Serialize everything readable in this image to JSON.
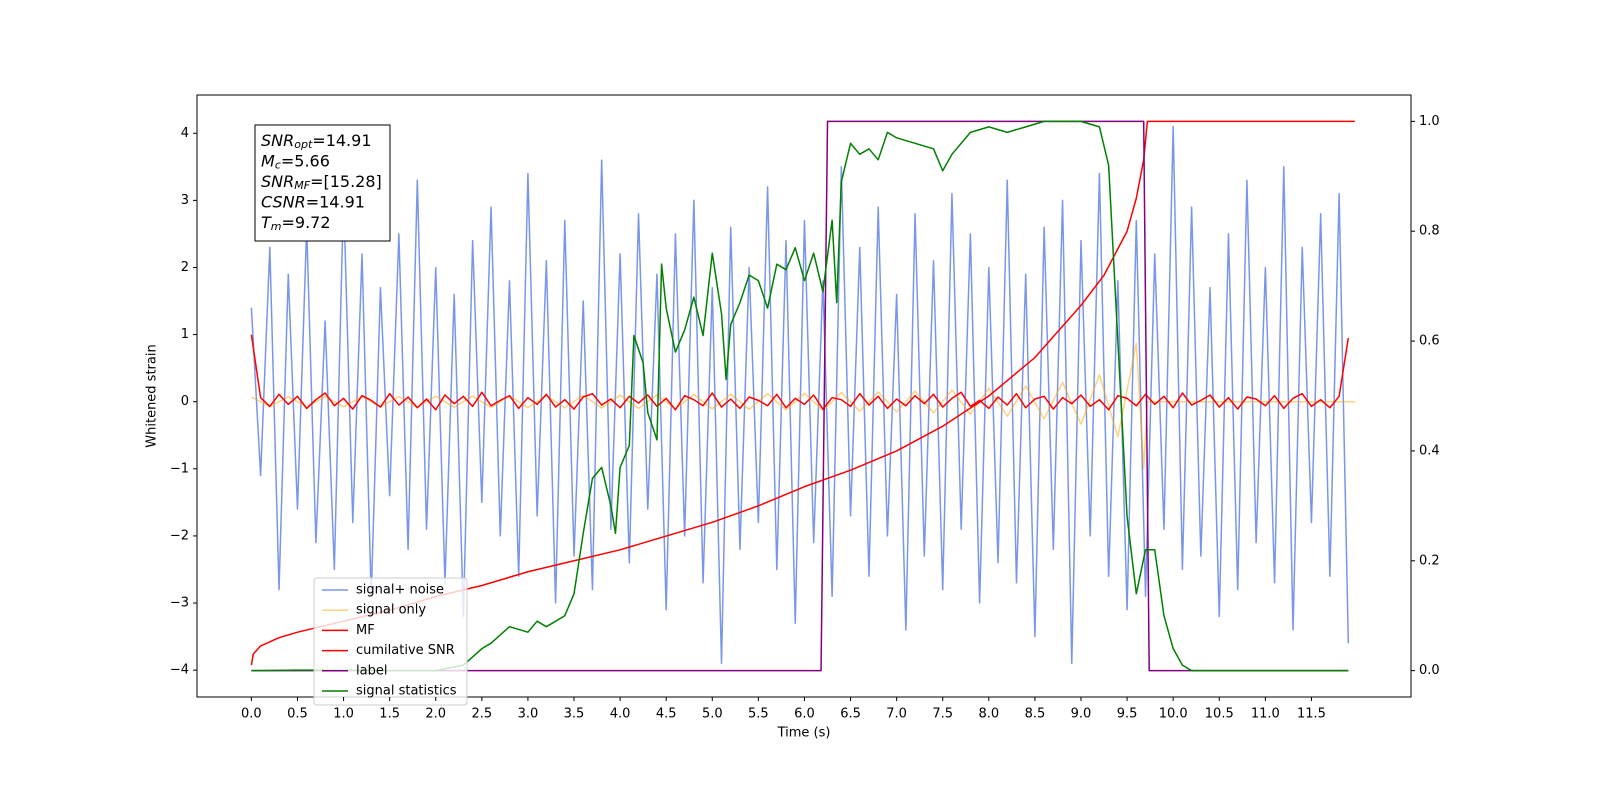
{
  "chart_data": {
    "type": "line",
    "xlabel": "Time (s)",
    "ylabel": "Whitened strain",
    "xlim": [
      -0.59,
      12.58
    ],
    "ylim": [
      -4.4,
      4.57
    ],
    "y2lim": [
      -0.048,
      1.048
    ],
    "xticks": [
      {
        "value": 0,
        "label": "0.0"
      },
      0.5,
      {
        "value": 1,
        "label": "1.0"
      },
      1.5,
      {
        "value": 2,
        "label": "2.0"
      },
      2.5,
      {
        "value": 3,
        "label": "3.0"
      },
      3.5,
      {
        "value": 4,
        "label": "4.0"
      },
      4.5,
      {
        "value": 5,
        "label": "5.0"
      },
      5.5,
      {
        "value": 6,
        "label": "6.0"
      },
      6.5,
      {
        "value": 7,
        "label": "7.0"
      },
      7.5,
      {
        "value": 8,
        "label": "8.0"
      },
      8.5,
      {
        "value": 9,
        "label": "9.0"
      },
      9.5,
      {
        "value": 10,
        "label": "10.0"
      },
      10.5,
      {
        "value": 11,
        "label": "11.0"
      },
      11.5
    ],
    "yticks": [
      {
        "value": -4,
        "label": "−4"
      },
      {
        "value": -3,
        "label": "−3"
      },
      {
        "value": -2,
        "label": "−2"
      },
      {
        "value": -1,
        "label": "−1"
      },
      0,
      1,
      2,
      3,
      4
    ],
    "y2ticks": [
      {
        "value": 0,
        "label": "0.0"
      },
      0.2,
      0.4,
      0.6,
      0.8,
      {
        "value": 1,
        "label": "1.0"
      }
    ],
    "grid": false,
    "legend": "lower left",
    "annotations": [
      {
        "symbol": "SNR",
        "sub": "opt",
        "text": "=14.91"
      },
      {
        "symbol": "M",
        "sub": "c",
        "text": "=5.66"
      },
      {
        "symbol": "SNR",
        "sub": "MF",
        "text": "=[15.28]"
      },
      {
        "symbol": "CSNR",
        "text": "=14.91"
      },
      {
        "symbol": "T",
        "sub": "m",
        "text": "=9.72"
      }
    ],
    "series": [
      {
        "name": "signal+ noise",
        "color": "#4169e1",
        "alpha": 0.7,
        "axis": "y",
        "x": [
          0,
          0.1,
          0.2,
          0.3,
          0.4,
          0.5,
          0.6,
          0.7,
          0.8,
          0.9,
          1,
          1.1,
          1.2,
          1.3,
          1.4,
          1.5,
          1.6,
          1.7,
          1.8,
          1.9,
          2,
          2.1,
          2.2,
          2.3,
          2.4,
          2.5,
          2.6,
          2.7,
          2.8,
          2.9,
          3,
          3.1,
          3.2,
          3.3,
          3.4,
          3.5,
          3.6,
          3.7,
          3.8,
          3.9,
          4,
          4.1,
          4.2,
          4.3,
          4.4,
          4.5,
          4.6,
          4.7,
          4.8,
          4.9,
          5,
          5.1,
          5.2,
          5.3,
          5.4,
          5.5,
          5.6,
          5.7,
          5.8,
          5.9,
          6,
          6.1,
          6.2,
          6.3,
          6.4,
          6.5,
          6.6,
          6.7,
          6.8,
          6.9,
          7,
          7.1,
          7.2,
          7.3,
          7.4,
          7.5,
          7.6,
          7.7,
          7.8,
          7.9,
          8,
          8.1,
          8.2,
          8.3,
          8.4,
          8.5,
          8.6,
          8.7,
          8.8,
          8.9,
          9,
          9.1,
          9.2,
          9.3,
          9.4,
          9.5,
          9.6,
          9.7,
          9.8,
          9.9,
          10,
          10.1,
          10.2,
          10.3,
          10.4,
          10.5,
          10.6,
          10.7,
          10.8,
          10.9,
          11,
          11.1,
          11.2,
          11.3,
          11.4,
          11.5,
          11.6,
          11.7,
          11.8,
          11.9
        ],
        "values": [
          1.4,
          -1.1,
          2.3,
          -2.8,
          1.9,
          -1.6,
          2.6,
          -2.1,
          1.2,
          -2.5,
          3.1,
          -1.8,
          2.2,
          -2.9,
          1.7,
          -1.4,
          2.5,
          -2.2,
          3.3,
          -1.9,
          2.0,
          -2.7,
          1.6,
          -3.2,
          2.4,
          -1.5,
          2.9,
          -2.0,
          1.8,
          -2.6,
          3.4,
          -1.7,
          2.1,
          -3.0,
          2.7,
          -2.3,
          1.5,
          -2.8,
          3.6,
          -1.9,
          2.2,
          -2.4,
          2.8,
          -1.6,
          1.9,
          -3.1,
          2.5,
          -2.0,
          3.0,
          -2.7,
          1.7,
          -3.9,
          2.6,
          -2.2,
          2.0,
          -1.8,
          3.2,
          -2.5,
          2.4,
          -3.3,
          2.7,
          -2.1,
          1.8,
          -2.9,
          3.5,
          -1.7,
          2.3,
          -2.6,
          2.9,
          -2.0,
          1.6,
          -3.4,
          2.8,
          -2.3,
          2.1,
          -2.8,
          3.1,
          -1.9,
          2.5,
          -3.0,
          2.0,
          -2.4,
          3.3,
          -2.7,
          1.9,
          -3.5,
          2.6,
          -2.2,
          3.0,
          -3.9,
          2.4,
          -2.0,
          3.4,
          -2.6,
          1.8,
          -3.1,
          2.7,
          -2.9,
          2.2,
          -1.9,
          4.1,
          -2.5,
          2.9,
          -2.3,
          1.7,
          -3.2,
          2.5,
          -2.8,
          3.3,
          -2.1,
          2.0,
          -2.7,
          3.5,
          -3.4,
          2.3,
          -1.8,
          2.8,
          -2.6,
          3.1,
          -3.6
        ]
      },
      {
        "name": "signal only",
        "color": "#ffa500",
        "alpha": 0.5,
        "axis": "y",
        "x": [
          0,
          0.2,
          0.4,
          0.6,
          0.8,
          1,
          1.2,
          1.4,
          1.6,
          1.8,
          2,
          2.2,
          2.4,
          2.6,
          2.8,
          3,
          3.2,
          3.4,
          3.6,
          3.8,
          4,
          4.2,
          4.4,
          4.6,
          4.8,
          5,
          5.2,
          5.4,
          5.6,
          5.8,
          6,
          6.2,
          6.4,
          6.6,
          6.8,
          7,
          7.2,
          7.4,
          7.6,
          7.8,
          8,
          8.2,
          8.4,
          8.6,
          8.8,
          9,
          9.2,
          9.4,
          9.6,
          9.68,
          9.72,
          11.97
        ],
        "values": [
          0.071,
          -0.072,
          0.073,
          -0.074,
          0.075,
          -0.076,
          0.077,
          -0.078,
          0.08,
          -0.081,
          0.082,
          -0.083,
          0.085,
          -0.086,
          0.088,
          -0.089,
          0.091,
          -0.092,
          0.094,
          -0.096,
          0.098,
          -0.1,
          0.102,
          -0.105,
          0.107,
          -0.11,
          0.113,
          -0.116,
          0.119,
          -0.123,
          0.127,
          -0.131,
          0.136,
          -0.141,
          0.146,
          -0.153,
          0.16,
          -0.168,
          0.177,
          -0.188,
          0.2,
          -0.215,
          0.234,
          -0.257,
          0.289,
          -0.333,
          0.401,
          -0.526,
          0.874,
          -1.0,
          0,
          0
        ]
      },
      {
        "name": "MF",
        "color": "#ff0000",
        "alpha": 1,
        "axis": "y",
        "x": [
          0,
          0.1,
          0.2,
          0.3,
          0.4,
          0.5,
          0.6,
          0.7,
          0.8,
          0.9,
          1,
          1.1,
          1.2,
          1.3,
          1.4,
          1.5,
          1.6,
          1.7,
          1.8,
          1.9,
          2,
          2.1,
          2.2,
          2.3,
          2.4,
          2.5,
          2.6,
          2.7,
          2.8,
          2.9,
          3,
          3.1,
          3.2,
          3.3,
          3.4,
          3.5,
          3.6,
          3.7,
          3.8,
          3.9,
          4,
          4.1,
          4.2,
          4.3,
          4.4,
          4.5,
          4.6,
          4.7,
          4.8,
          4.9,
          5,
          5.1,
          5.2,
          5.3,
          5.4,
          5.5,
          5.6,
          5.7,
          5.8,
          5.9,
          6,
          6.1,
          6.2,
          6.3,
          6.4,
          6.5,
          6.6,
          6.7,
          6.8,
          6.9,
          7,
          7.1,
          7.2,
          7.3,
          7.4,
          7.5,
          7.6,
          7.7,
          7.8,
          7.9,
          8,
          8.1,
          8.2,
          8.3,
          8.4,
          8.5,
          8.6,
          8.7,
          8.8,
          8.9,
          9,
          9.1,
          9.2,
          9.3,
          9.4,
          9.5,
          9.6,
          9.7,
          9.8,
          9.9,
          10,
          10.1,
          10.2,
          10.3,
          10.4,
          10.5,
          10.6,
          10.7,
          10.8,
          10.9,
          11,
          11.1,
          11.2,
          11.3,
          11.4,
          11.5,
          11.6,
          11.7,
          11.8,
          11.9
        ],
        "values": [
          1.0,
          0.06,
          -0.07,
          0.11,
          -0.04,
          0.08,
          -0.1,
          0.03,
          0.13,
          -0.06,
          0.05,
          -0.11,
          0.09,
          0.02,
          -0.08,
          0.12,
          -0.05,
          0.07,
          -0.09,
          0.04,
          -0.12,
          0.1,
          -0.03,
          0.08,
          -0.07,
          0.14,
          -0.06,
          0.02,
          0.09,
          -0.1,
          0.06,
          -0.04,
          0.11,
          -0.08,
          0.03,
          -0.11,
          0.07,
          0.12,
          -0.05,
          0.04,
          -0.09,
          0.08,
          -0.02,
          0.1,
          -0.07,
          0.05,
          -0.12,
          0.09,
          0.03,
          -0.06,
          0.13,
          -0.08,
          0.04,
          -0.1,
          0.07,
          0.02,
          -0.06,
          0.11,
          -0.09,
          0.05,
          -0.04,
          0.1,
          -0.11,
          0.06,
          0.03,
          -0.07,
          0.12,
          -0.05,
          0.08,
          -0.1,
          0.04,
          -0.06,
          0.09,
          -0.03,
          0.11,
          -0.08,
          0.05,
          0.14,
          -0.07,
          0.02,
          -0.1,
          0.07,
          -0.05,
          0.12,
          -0.09,
          0.04,
          0.08,
          -0.11,
          0.06,
          -0.03,
          0.1,
          -0.07,
          0.03,
          -0.12,
          0.09,
          0.05,
          -0.06,
          0.11,
          -0.04,
          0.08,
          -0.09,
          0.13,
          -0.05,
          0.02,
          0.1,
          -0.08,
          0.06,
          -0.11,
          0.07,
          0.04,
          -0.06,
          0.09,
          -0.1,
          0.05,
          0.12,
          -0.07,
          0.03,
          -0.09,
          0.08,
          0.95
        ]
      },
      {
        "name": "cumilative SNR",
        "color": "#ff0000",
        "alpha": 1,
        "axis": "y2",
        "x": [
          0,
          0.02,
          0.1,
          0.3,
          0.5,
          1,
          1.5,
          2,
          2.5,
          3,
          3.5,
          4,
          4.5,
          5,
          5.5,
          6,
          6.5,
          7,
          7.5,
          8,
          8.5,
          9,
          9.25,
          9.5,
          9.6,
          9.68,
          9.72,
          11.97
        ],
        "values": [
          0.01,
          0.03,
          0.045,
          0.06,
          0.07,
          0.09,
          0.11,
          0.135,
          0.155,
          0.18,
          0.2,
          0.22,
          0.245,
          0.27,
          0.3,
          0.335,
          0.365,
          0.4,
          0.445,
          0.5,
          0.57,
          0.665,
          0.72,
          0.8,
          0.86,
          0.93,
          1.0,
          1.0
        ]
      },
      {
        "name": "label",
        "color": "#800080",
        "alpha": 1,
        "axis": "y2",
        "x": [
          0,
          6.18,
          6.25,
          9.68,
          9.74,
          11.9
        ],
        "values": [
          0,
          0,
          1,
          1,
          0,
          0
        ]
      },
      {
        "name": "signal statistics",
        "color": "#008000",
        "alpha": 1,
        "axis": "y2",
        "x": [
          0,
          0.5,
          1,
          1.5,
          2,
          2.3,
          2.5,
          2.6,
          2.8,
          3.0,
          3.1,
          3.2,
          3.4,
          3.5,
          3.6,
          3.7,
          3.8,
          3.9,
          3.95,
          4.0,
          4.1,
          4.15,
          4.25,
          4.3,
          4.4,
          4.45,
          4.5,
          4.6,
          4.7,
          4.8,
          4.9,
          5.0,
          5.1,
          5.15,
          5.2,
          5.3,
          5.4,
          5.5,
          5.6,
          5.7,
          5.8,
          5.9,
          6.0,
          6.1,
          6.2,
          6.3,
          6.35,
          6.4,
          6.5,
          6.6,
          6.7,
          6.8,
          6.9,
          7.0,
          7.2,
          7.4,
          7.5,
          7.6,
          7.8,
          8.0,
          8.2,
          8.4,
          8.6,
          9.0,
          9.2,
          9.3,
          9.4,
          9.5,
          9.6,
          9.7,
          9.8,
          9.9,
          10.0,
          10.1,
          10.2,
          11.9
        ],
        "values": [
          0,
          0.001,
          0.001,
          0,
          0,
          0.01,
          0.04,
          0.05,
          0.08,
          0.07,
          0.09,
          0.08,
          0.1,
          0.14,
          0.25,
          0.35,
          0.37,
          0.3,
          0.25,
          0.37,
          0.41,
          0.61,
          0.56,
          0.47,
          0.42,
          0.74,
          0.66,
          0.58,
          0.62,
          0.68,
          0.61,
          0.76,
          0.65,
          0.53,
          0.63,
          0.67,
          0.72,
          0.71,
          0.66,
          0.74,
          0.73,
          0.77,
          0.71,
          0.76,
          0.69,
          0.82,
          0.67,
          0.89,
          0.96,
          0.94,
          0.95,
          0.93,
          0.98,
          0.97,
          0.96,
          0.95,
          0.91,
          0.94,
          0.98,
          0.99,
          0.98,
          0.99,
          1.0,
          1.0,
          0.99,
          0.92,
          0.6,
          0.28,
          0.14,
          0.22,
          0.22,
          0.1,
          0.04,
          0.01,
          0,
          0
        ]
      }
    ]
  }
}
